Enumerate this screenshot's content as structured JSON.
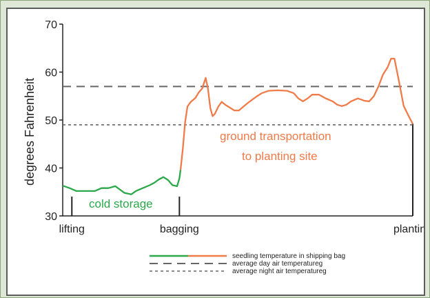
{
  "chart_data": {
    "type": "line",
    "ylabel": "degrees Fahrenheit",
    "ylim": [
      30,
      70
    ],
    "yticks": [
      30,
      40,
      50,
      60,
      70
    ],
    "x_labels": [
      {
        "text": "lifting",
        "x": 0.4
      },
      {
        "text": "bagging",
        "x": 5.1
      },
      {
        "text": "planting",
        "x": 15.3
      }
    ],
    "ref_lines": {
      "day_avg": 57,
      "night_avg": 49
    },
    "annotations": {
      "cold_storage": "cold storage",
      "ground_1": "ground transportation",
      "ground_2": "to planting site"
    },
    "series": [
      {
        "segment": "cold",
        "color": "#2aa84a",
        "points": [
          [
            0.0,
            36.3
          ],
          [
            0.3,
            35.8
          ],
          [
            0.6,
            35.2
          ],
          [
            1.0,
            35.2
          ],
          [
            1.4,
            35.2
          ],
          [
            1.7,
            35.8
          ],
          [
            2.0,
            35.8
          ],
          [
            2.3,
            36.2
          ],
          [
            2.5,
            35.5
          ],
          [
            2.7,
            34.8
          ],
          [
            3.0,
            34.5
          ],
          [
            3.2,
            35.2
          ],
          [
            3.5,
            35.8
          ],
          [
            3.8,
            36.4
          ],
          [
            4.0,
            36.9
          ],
          [
            4.2,
            37.6
          ],
          [
            4.4,
            38.1
          ],
          [
            4.6,
            37.5
          ],
          [
            4.8,
            36.4
          ],
          [
            5.0,
            36.2
          ],
          [
            5.1,
            37.8
          ],
          [
            5.15,
            39.6
          ]
        ]
      },
      {
        "segment": "ground",
        "color": "#f07a48",
        "points": [
          [
            5.15,
            39.6
          ],
          [
            5.25,
            44.0
          ],
          [
            5.35,
            49.5
          ],
          [
            5.45,
            52.8
          ],
          [
            5.6,
            53.8
          ],
          [
            5.8,
            54.6
          ],
          [
            5.95,
            55.8
          ],
          [
            6.1,
            56.6
          ],
          [
            6.25,
            58.8
          ],
          [
            6.35,
            56.5
          ],
          [
            6.45,
            52.5
          ],
          [
            6.55,
            50.8
          ],
          [
            6.65,
            51.3
          ],
          [
            6.8,
            52.8
          ],
          [
            6.95,
            53.8
          ],
          [
            7.1,
            53.2
          ],
          [
            7.3,
            52.6
          ],
          [
            7.5,
            52.0
          ],
          [
            7.7,
            52.0
          ],
          [
            7.9,
            52.8
          ],
          [
            8.1,
            53.6
          ],
          [
            8.3,
            54.3
          ],
          [
            8.5,
            55.0
          ],
          [
            8.7,
            55.6
          ],
          [
            9.0,
            56.1
          ],
          [
            9.4,
            56.2
          ],
          [
            9.8,
            56.1
          ],
          [
            10.1,
            55.6
          ],
          [
            10.3,
            54.5
          ],
          [
            10.5,
            53.9
          ],
          [
            10.7,
            54.5
          ],
          [
            10.9,
            55.3
          ],
          [
            11.2,
            55.3
          ],
          [
            11.5,
            54.5
          ],
          [
            11.8,
            53.9
          ],
          [
            12.0,
            53.2
          ],
          [
            12.2,
            52.9
          ],
          [
            12.4,
            53.2
          ],
          [
            12.6,
            53.9
          ],
          [
            12.9,
            54.5
          ],
          [
            13.2,
            54.0
          ],
          [
            13.4,
            53.9
          ],
          [
            13.6,
            55.0
          ],
          [
            13.8,
            57.0
          ],
          [
            14.0,
            59.5
          ],
          [
            14.2,
            61.0
          ],
          [
            14.35,
            62.8
          ],
          [
            14.5,
            62.8
          ],
          [
            14.7,
            58.0
          ],
          [
            14.9,
            53.0
          ],
          [
            15.1,
            51.0
          ],
          [
            15.3,
            49.2
          ]
        ]
      }
    ],
    "legend": [
      {
        "label": "seedling temperature in shipping bag",
        "style": "two-tone"
      },
      {
        "label": "average day air temperatureg",
        "style": "dashed"
      },
      {
        "label": "average night air temperatureg",
        "style": "dotted"
      }
    ],
    "colors": {
      "cold": "#2aa84a",
      "ground": "#f07a48",
      "axis": "#222222",
      "ref": "#666666"
    }
  }
}
